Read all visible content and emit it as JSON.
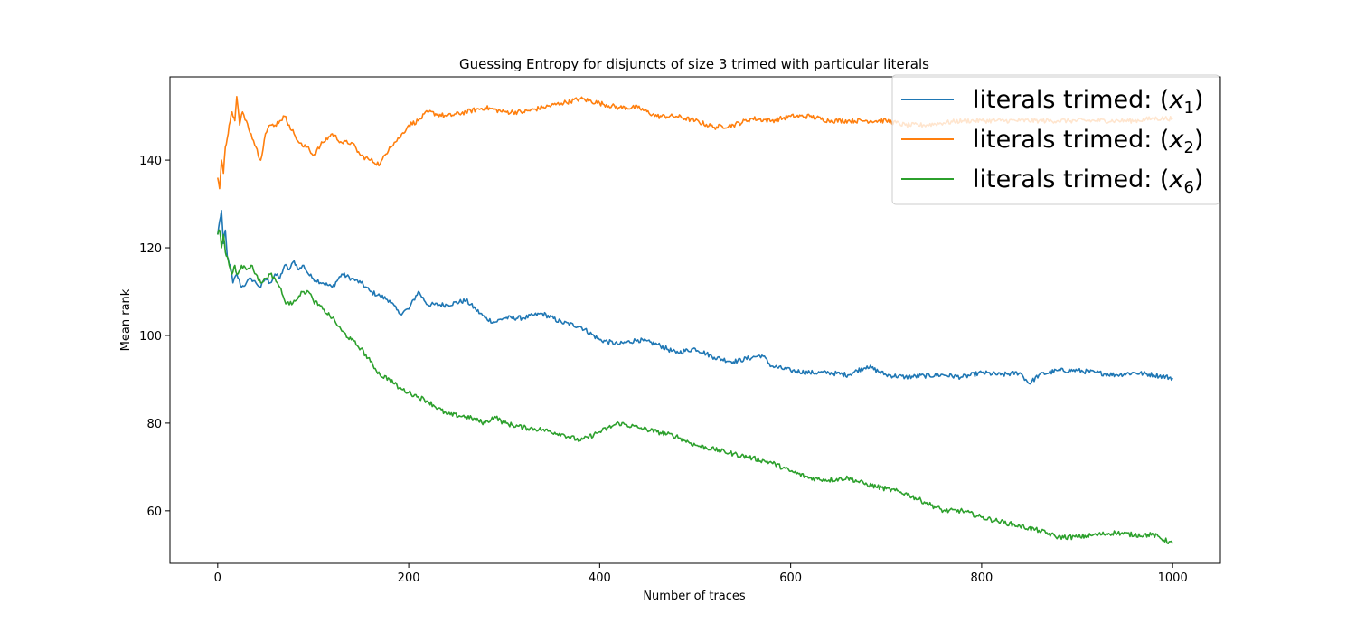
{
  "chart_data": {
    "type": "line",
    "title": "Guessing Entropy for disjuncts of size 3 trimed with particular literals",
    "xlabel": "Number of traces",
    "ylabel": "Mean rank",
    "xlim": [
      -50,
      1050
    ],
    "ylim": [
      48,
      159
    ],
    "xticks": [
      0,
      200,
      400,
      600,
      800,
      1000
    ],
    "yticks": [
      60,
      80,
      100,
      120,
      140
    ],
    "grid": false,
    "legend_position": "top-right",
    "series": [
      {
        "name": "literals trimed: (x_1)",
        "legend_prefix": "literals trimed: (",
        "legend_var": "x",
        "legend_sub": "1",
        "legend_suffix": ")",
        "color": "#1f77b4",
        "points": [
          [
            0,
            123
          ],
          [
            2,
            126
          ],
          [
            4,
            128.5
          ],
          [
            6,
            121
          ],
          [
            8,
            124
          ],
          [
            10,
            118
          ],
          [
            13,
            116
          ],
          [
            16,
            112
          ],
          [
            20,
            114
          ],
          [
            25,
            111
          ],
          [
            30,
            112
          ],
          [
            35,
            113
          ],
          [
            40,
            112
          ],
          [
            45,
            111
          ],
          [
            50,
            113
          ],
          [
            55,
            112
          ],
          [
            60,
            114
          ],
          [
            65,
            113
          ],
          [
            70,
            116
          ],
          [
            75,
            115
          ],
          [
            80,
            117
          ],
          [
            85,
            115
          ],
          [
            90,
            116
          ],
          [
            95,
            114
          ],
          [
            100,
            113
          ],
          [
            110,
            112
          ],
          [
            120,
            111
          ],
          [
            130,
            114
          ],
          [
            140,
            113
          ],
          [
            150,
            112
          ],
          [
            160,
            110
          ],
          [
            170,
            109
          ],
          [
            180,
            108
          ],
          [
            190,
            105
          ],
          [
            200,
            106
          ],
          [
            210,
            110
          ],
          [
            220,
            107
          ],
          [
            240,
            107
          ],
          [
            260,
            108
          ],
          [
            270,
            106
          ],
          [
            280,
            104
          ],
          [
            290,
            103
          ],
          [
            300,
            104
          ],
          [
            320,
            104
          ],
          [
            340,
            105
          ],
          [
            360,
            103
          ],
          [
            380,
            102
          ],
          [
            400,
            99
          ],
          [
            420,
            98
          ],
          [
            440,
            99
          ],
          [
            460,
            98
          ],
          [
            480,
            96
          ],
          [
            500,
            97
          ],
          [
            520,
            95
          ],
          [
            540,
            94
          ],
          [
            560,
            95
          ],
          [
            570,
            95.5
          ],
          [
            580,
            93
          ],
          [
            600,
            92
          ],
          [
            620,
            91.5
          ],
          [
            640,
            91.5
          ],
          [
            660,
            91
          ],
          [
            680,
            93
          ],
          [
            700,
            91
          ],
          [
            720,
            90.5
          ],
          [
            740,
            90.8
          ],
          [
            760,
            91
          ],
          [
            780,
            90.5
          ],
          [
            800,
            91.5
          ],
          [
            820,
            91
          ],
          [
            840,
            91.5
          ],
          [
            850,
            89
          ],
          [
            860,
            91
          ],
          [
            880,
            92
          ],
          [
            900,
            92
          ],
          [
            920,
            91.5
          ],
          [
            940,
            91
          ],
          [
            960,
            91.5
          ],
          [
            980,
            91
          ],
          [
            1000,
            90.3
          ]
        ]
      },
      {
        "name": "literals trimed: (x_2)",
        "legend_prefix": "literals trimed: (",
        "legend_var": "x",
        "legend_sub": "2",
        "legend_suffix": ")",
        "color": "#ff7f0e",
        "points": [
          [
            0,
            136
          ],
          [
            2,
            133.5
          ],
          [
            4,
            140
          ],
          [
            6,
            137
          ],
          [
            8,
            143
          ],
          [
            10,
            145
          ],
          [
            12,
            148
          ],
          [
            15,
            151
          ],
          [
            18,
            149
          ],
          [
            20,
            154.5
          ],
          [
            23,
            148
          ],
          [
            26,
            151
          ],
          [
            30,
            149
          ],
          [
            35,
            146
          ],
          [
            40,
            143
          ],
          [
            45,
            140
          ],
          [
            50,
            146
          ],
          [
            55,
            148
          ],
          [
            60,
            148
          ],
          [
            65,
            149
          ],
          [
            70,
            150
          ],
          [
            75,
            148
          ],
          [
            80,
            146
          ],
          [
            85,
            144
          ],
          [
            90,
            143
          ],
          [
            95,
            143
          ],
          [
            100,
            141
          ],
          [
            110,
            144
          ],
          [
            120,
            146
          ],
          [
            130,
            144
          ],
          [
            140,
            144
          ],
          [
            150,
            141
          ],
          [
            160,
            140
          ],
          [
            170,
            139
          ],
          [
            180,
            143
          ],
          [
            190,
            145
          ],
          [
            200,
            148
          ],
          [
            210,
            149
          ],
          [
            220,
            151
          ],
          [
            240,
            150
          ],
          [
            260,
            151
          ],
          [
            280,
            152
          ],
          [
            300,
            151
          ],
          [
            320,
            151
          ],
          [
            340,
            152
          ],
          [
            360,
            153
          ],
          [
            380,
            154
          ],
          [
            400,
            153
          ],
          [
            420,
            152
          ],
          [
            440,
            152
          ],
          [
            460,
            150
          ],
          [
            480,
            150
          ],
          [
            500,
            149
          ],
          [
            520,
            147.5
          ],
          [
            540,
            148
          ],
          [
            560,
            149.5
          ],
          [
            580,
            149
          ],
          [
            600,
            150
          ],
          [
            620,
            150
          ],
          [
            640,
            149
          ],
          [
            660,
            149
          ],
          [
            680,
            149
          ],
          [
            700,
            149
          ],
          [
            720,
            148
          ],
          [
            740,
            148
          ],
          [
            760,
            148.5
          ],
          [
            780,
            149
          ],
          [
            800,
            149
          ],
          [
            820,
            149
          ],
          [
            840,
            149
          ],
          [
            860,
            149
          ],
          [
            880,
            149
          ],
          [
            900,
            149
          ],
          [
            920,
            149
          ],
          [
            940,
            149
          ],
          [
            960,
            149
          ],
          [
            980,
            149.5
          ],
          [
            1000,
            149.5
          ]
        ]
      },
      {
        "name": "literals trimed: (x_6)",
        "legend_prefix": "literals trimed: (",
        "legend_var": "x",
        "legend_sub": "6",
        "legend_suffix": ")",
        "color": "#2ca02c",
        "points": [
          [
            0,
            123
          ],
          [
            2,
            124
          ],
          [
            4,
            120
          ],
          [
            6,
            123
          ],
          [
            8,
            119
          ],
          [
            10,
            118
          ],
          [
            12,
            116
          ],
          [
            15,
            114
          ],
          [
            18,
            116
          ],
          [
            20,
            114
          ],
          [
            25,
            116
          ],
          [
            30,
            115
          ],
          [
            35,
            116
          ],
          [
            40,
            114
          ],
          [
            45,
            112
          ],
          [
            50,
            113
          ],
          [
            55,
            114
          ],
          [
            60,
            113
          ],
          [
            65,
            111
          ],
          [
            70,
            108
          ],
          [
            75,
            107
          ],
          [
            80,
            108
          ],
          [
            85,
            109
          ],
          [
            90,
            110
          ],
          [
            95,
            110
          ],
          [
            100,
            108
          ],
          [
            110,
            106
          ],
          [
            120,
            104
          ],
          [
            130,
            101
          ],
          [
            140,
            99
          ],
          [
            150,
            97
          ],
          [
            160,
            94
          ],
          [
            170,
            91
          ],
          [
            180,
            90
          ],
          [
            190,
            88
          ],
          [
            200,
            87
          ],
          [
            210,
            86
          ],
          [
            220,
            85
          ],
          [
            240,
            82
          ],
          [
            260,
            81.5
          ],
          [
            280,
            80
          ],
          [
            290,
            81.5
          ],
          [
            300,
            80
          ],
          [
            320,
            79
          ],
          [
            340,
            78.5
          ],
          [
            360,
            77.5
          ],
          [
            380,
            76
          ],
          [
            400,
            78
          ],
          [
            420,
            80
          ],
          [
            440,
            79
          ],
          [
            460,
            78
          ],
          [
            480,
            77
          ],
          [
            500,
            75
          ],
          [
            520,
            74
          ],
          [
            540,
            73
          ],
          [
            560,
            72
          ],
          [
            580,
            71
          ],
          [
            600,
            69
          ],
          [
            620,
            67.5
          ],
          [
            640,
            67
          ],
          [
            660,
            67.5
          ],
          [
            680,
            66
          ],
          [
            700,
            65
          ],
          [
            720,
            64
          ],
          [
            740,
            62
          ],
          [
            760,
            60
          ],
          [
            780,
            60
          ],
          [
            800,
            58.5
          ],
          [
            820,
            57.5
          ],
          [
            840,
            56.5
          ],
          [
            860,
            55.5
          ],
          [
            880,
            54
          ],
          [
            900,
            54
          ],
          [
            920,
            54.5
          ],
          [
            940,
            55
          ],
          [
            960,
            54.5
          ],
          [
            980,
            54.5
          ],
          [
            1000,
            52.5
          ]
        ]
      }
    ]
  }
}
